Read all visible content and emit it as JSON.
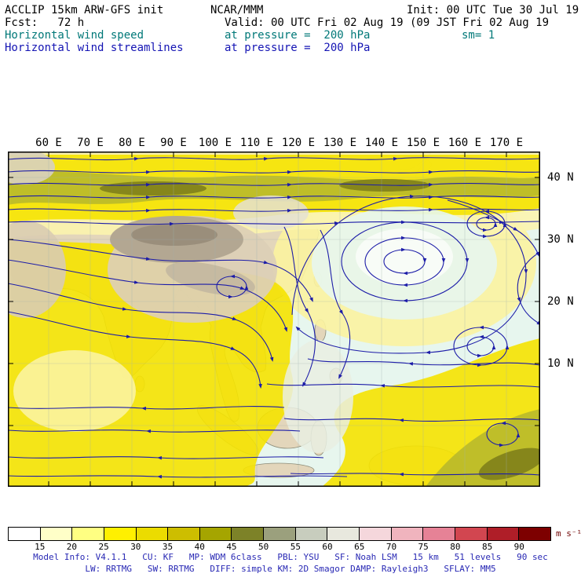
{
  "header": {
    "model": "ACCLIP 15km ARW-GFS init",
    "center": "NCAR/MMM",
    "init": "Init: 00 UTC Tue 30 Jul 19",
    "fcst": "Fcst:   72 h",
    "valid": "Valid: 00 UTC Fri 02 Aug 19 (09 JST Fri 02 Aug 19",
    "sm": "sm= 1",
    "fields": [
      {
        "name": "Horizontal wind speed",
        "level": "at pressure =  200 hPa",
        "color": "#007878"
      },
      {
        "name": "Horizontal wind streamlines",
        "level": "at pressure =  200 hPa",
        "color": "#1414B4"
      }
    ]
  },
  "map": {
    "top_axis_labels": [
      "60 E",
      "70 E",
      "80 E",
      "90 E",
      "100 E",
      "110 E",
      "120 E",
      "130 E",
      "140 E",
      "150 E",
      "160 E",
      "170 E"
    ],
    "right_axis_labels": [
      "40 N",
      "30 N",
      "20 N",
      "10 N"
    ],
    "palette": {
      "ocean": "#E7F6EE",
      "land": "#E3D6BB",
      "plateau": "#B3A792",
      "speed_yellow": "#F5E300",
      "speed_pale_yellow": "#FBF3A0",
      "speed_olive": "#B9B92B",
      "speed_dark_olive": "#80801A",
      "streamline_blue": "#1C1CA8"
    }
  },
  "colorbar": {
    "ticks": [
      "15",
      "20",
      "25",
      "30",
      "35",
      "40",
      "45",
      "50",
      "55",
      "60",
      "65",
      "70",
      "75",
      "80",
      "85",
      "90"
    ],
    "unit": "m s⁻¹",
    "colors": [
      "#FFFFFF",
      "#FFFFC8",
      "#FFFF82",
      "#FFF000",
      "#EBDC00",
      "#CDBE00",
      "#A5A500",
      "#7D8228",
      "#9BA07D",
      "#C8CDBE",
      "#E8E8DE",
      "#F5D7DC",
      "#F0B4BE",
      "#E68296",
      "#D24650",
      "#AF1E28",
      "#7D0000"
    ]
  },
  "footer": {
    "line1": "Model Info: V4.1.1   CU: KF   MP: WDM 6class   PBL: YSU   SF: Noah LSM   15 km   51 levels   90 sec",
    "line2": "LW: RRTMG   SW: RRTMG   DIFF: simple KM: 2D Smagor DAMP: Rayleigh3   SFLAY: MM5"
  }
}
